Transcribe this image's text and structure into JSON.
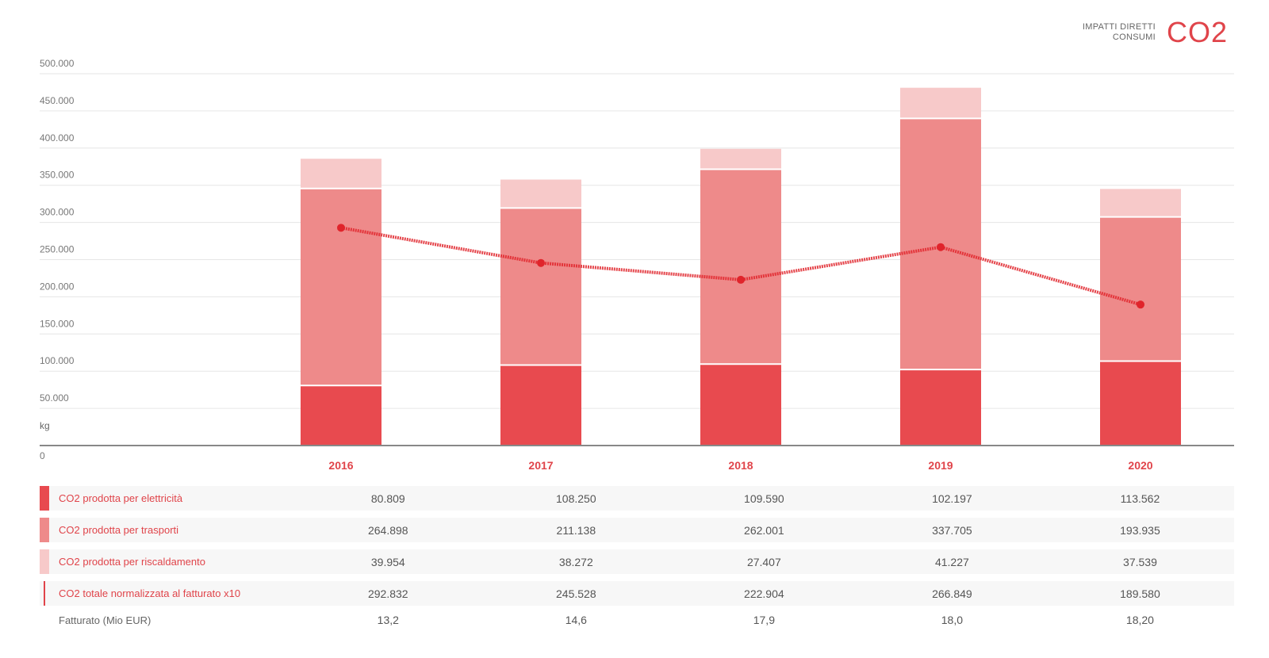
{
  "header": {
    "line1": "IMPATTI DIRETTI",
    "line2": "CONSUMI",
    "big": "CO2"
  },
  "colors": {
    "electricity": "#e84a4f",
    "transport": "#ee8a8a",
    "heating": "#f7c9c9",
    "line": "#e0242b",
    "text_accent": "#e0444a"
  },
  "chart_data": {
    "type": "bar",
    "stacked": true,
    "categories": [
      "2016",
      "2017",
      "2018",
      "2019",
      "2020"
    ],
    "series": [
      {
        "name": "CO2 prodotta per elettricità",
        "values": [
          80809,
          108250,
          109590,
          102197,
          113562
        ]
      },
      {
        "name": "CO2 prodotta per trasporti",
        "values": [
          264898,
          211138,
          262001,
          337705,
          193935
        ]
      },
      {
        "name": "CO2 prodotta per riscaldamento",
        "values": [
          39954,
          38272,
          27407,
          41227,
          37539
        ]
      }
    ],
    "line_series": {
      "name": "CO2 totale normalizzata al fatturato x10",
      "values": [
        292832,
        245528,
        222904,
        266849,
        189580
      ]
    },
    "extra_row": {
      "name": "Fatturato (Mio EUR)",
      "values": [
        "13,2",
        "14,6",
        "17,9",
        "18,0",
        "18,20"
      ]
    },
    "ylim": [
      0,
      500000
    ],
    "yticks": [
      0,
      50000,
      100000,
      150000,
      200000,
      250000,
      300000,
      350000,
      400000,
      450000,
      500000
    ],
    "ytick_labels": [
      "0",
      "50.000",
      "100.000",
      "150.000",
      "200.000",
      "250.000",
      "300.000",
      "350.000",
      "400.000",
      "450.000",
      "500.000"
    ],
    "ylabel": "kg",
    "grid": true
  },
  "table": {
    "rows": [
      {
        "label": "CO2 prodotta per elettricità",
        "values": [
          "80.809",
          "108.250",
          "109.590",
          "102.197",
          "113.562"
        ]
      },
      {
        "label": "CO2 prodotta per trasporti",
        "values": [
          "264.898",
          "211.138",
          "262.001",
          "337.705",
          "193.935"
        ]
      },
      {
        "label": "CO2 prodotta per riscaldamento",
        "values": [
          "39.954",
          "38.272",
          "27.407",
          "41.227",
          "37.539"
        ]
      },
      {
        "label": "CO2 totale normalizzata al fatturato x10",
        "values": [
          "292.832",
          "245.528",
          "222.904",
          "266.849",
          "189.580"
        ]
      },
      {
        "label": "Fatturato (Mio EUR)",
        "values": [
          "13,2",
          "14,6",
          "17,9",
          "18,0",
          "18,20"
        ]
      }
    ]
  }
}
